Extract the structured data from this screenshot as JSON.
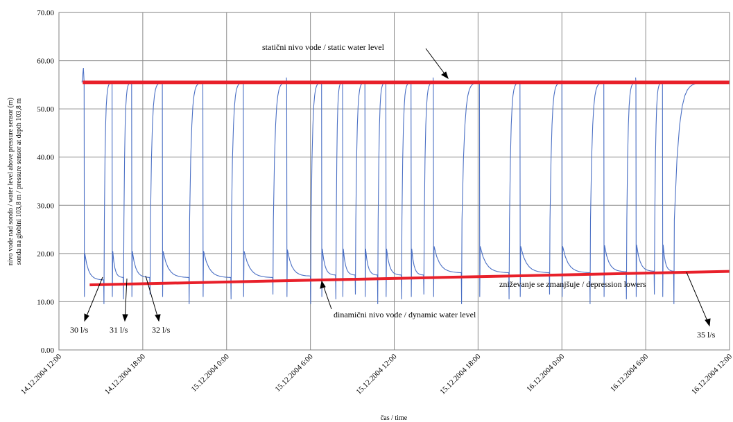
{
  "chart_data": {
    "type": "line",
    "title": "",
    "xlabel": "čas / time",
    "ylabel_line1": "nivo vode nad sondo / water level above pressure sensor (m)",
    "ylabel_line2": "sonda na globini 103,8 m / pressure sensor at depth 103,8 m",
    "x_range_hours": [
      0,
      48
    ],
    "ylim": [
      0,
      70
    ],
    "y_ticks": [
      0,
      10,
      20,
      30,
      40,
      50,
      60,
      70
    ],
    "y_tick_labels": [
      "0.00",
      "10.00",
      "20.00",
      "30.00",
      "40.00",
      "50.00",
      "60.00",
      "70.00"
    ],
    "x_tick_labels": [
      "14.12.2004 12:00",
      "14.12.2004 18:00",
      "15.12.2004 0:00",
      "15.12.2004 6:00",
      "15.12.2004 12:00",
      "15.12.2004 18:00",
      "16.12.2004 0:00",
      "16.12.2004 6:00",
      "16.12.2004 12:00"
    ],
    "grid": true,
    "static_level": {
      "label": "statični nivo vode / static water level",
      "value": 55.5,
      "color": "#e8202a"
    },
    "dynamic_level": {
      "label": "dinamični nivo vode / dynamic water level",
      "start": 13.5,
      "end": 16.3,
      "color": "#e8202a"
    },
    "depression_label": "zniževanje se zmanjšuje / depression lowers",
    "series_color": "#4a6fc4",
    "flow_labels": [
      "30 l/s",
      "31 l/s",
      "32 l/s",
      "35 l/s"
    ],
    "pump_cycles": [
      {
        "on": 1.8,
        "off": 3.2,
        "bottom": 14.5
      },
      {
        "on": 3.8,
        "off": 4.6,
        "bottom": 15.0
      },
      {
        "on": 5.2,
        "off": 6.5,
        "bottom": 15.0
      },
      {
        "on": 7.4,
        "off": 9.3,
        "bottom": 15.0
      },
      {
        "on": 10.3,
        "off": 12.3,
        "bottom": 15.0
      },
      {
        "on": 13.2,
        "off": 15.3,
        "bottom": 15.0
      },
      {
        "on": 16.3,
        "off": 18.0,
        "bottom": 15.3
      },
      {
        "on": 18.8,
        "off": 19.8,
        "bottom": 15.5
      },
      {
        "on": 20.3,
        "off": 21.2,
        "bottom": 15.5
      },
      {
        "on": 21.9,
        "off": 22.8,
        "bottom": 15.5
      },
      {
        "on": 23.4,
        "off": 24.5,
        "bottom": 15.5
      },
      {
        "on": 25.2,
        "off": 26.1,
        "bottom": 15.5
      },
      {
        "on": 26.8,
        "off": 28.8,
        "bottom": 16.0
      },
      {
        "on": 30.1,
        "off": 32.2,
        "bottom": 16.0
      },
      {
        "on": 33.0,
        "off": 35.1,
        "bottom": 16.0
      },
      {
        "on": 36.0,
        "off": 38.0,
        "bottom": 16.0
      },
      {
        "on": 39.0,
        "off": 40.6,
        "bottom": 16.2
      },
      {
        "on": 41.3,
        "off": 42.6,
        "bottom": 16.3
      },
      {
        "on": 43.2,
        "off": 44.0,
        "bottom": 16.3
      }
    ],
    "series_end_hours": 46.3
  }
}
